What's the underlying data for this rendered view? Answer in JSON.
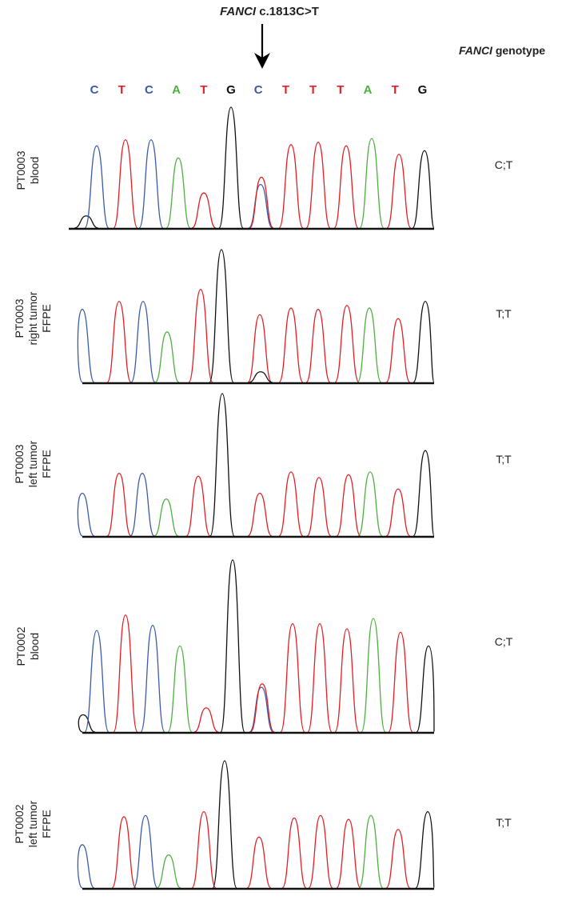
{
  "mutation": {
    "gene": "FANCI",
    "variant": "c.1813C>T"
  },
  "genotype_header": {
    "gene": "FANCI",
    "label": "genotype"
  },
  "base_colors": {
    "A": "#4daf3f",
    "C": "#3a5ba9",
    "G": "#111111",
    "T": "#e31e24"
  },
  "reference_sequence": [
    "C",
    "T",
    "C",
    "A",
    "T",
    "G",
    "C",
    "T",
    "T",
    "T",
    "A",
    "T",
    "G"
  ],
  "samples": [
    {
      "label_lines": [
        "PT0003",
        "blood"
      ],
      "genotype": "C;T"
    },
    {
      "label_lines": [
        "PT0003",
        "right tumor",
        "FFPE"
      ],
      "genotype": "T;T"
    },
    {
      "label_lines": [
        "PT0003",
        "left tumor",
        "FFPE"
      ],
      "genotype": "T;T"
    },
    {
      "label_lines": [
        "PT0002",
        "blood"
      ],
      "genotype": "C;T"
    },
    {
      "label_lines": [
        "PT0002",
        "left tumor",
        "FFPE"
      ],
      "genotype": "T;T"
    }
  ],
  "chart_data": {
    "type": "line",
    "title": "",
    "xlabel": "",
    "ylabel": "",
    "series_names": [
      "A",
      "C",
      "G",
      "T"
    ],
    "traces": [
      {
        "sample": "PT0003 blood",
        "genotype": "C;T",
        "peaks": [
          {
            "base": "G",
            "value": 0.1
          },
          {
            "base": "C",
            "value": 0.68
          },
          {
            "base": "T",
            "value": 0.73
          },
          {
            "base": "C",
            "value": 0.73
          },
          {
            "base": "A",
            "value": 0.58
          },
          {
            "base": "T",
            "value": 0.29
          },
          {
            "base": "G",
            "value": 1.0
          },
          {
            "base": "C",
            "value": 0.36
          },
          {
            "base": "T",
            "value": 0.42
          },
          {
            "base": "T",
            "value": 0.69
          },
          {
            "base": "T",
            "value": 0.71
          },
          {
            "base": "T",
            "value": 0.68
          },
          {
            "base": "A",
            "value": 0.74
          },
          {
            "base": "T",
            "value": 0.61
          },
          {
            "base": "G",
            "value": 0.64
          }
        ]
      },
      {
        "sample": "PT0003 right tumor FFPE",
        "genotype": "T;T",
        "peaks": [
          {
            "base": "C",
            "value": 0.55
          },
          {
            "base": "T",
            "value": 0.61
          },
          {
            "base": "C",
            "value": 0.61
          },
          {
            "base": "A",
            "value": 0.38
          },
          {
            "base": "T",
            "value": 0.7
          },
          {
            "base": "G",
            "value": 1.0
          },
          {
            "base": "T",
            "value": 0.51
          },
          {
            "base": "G",
            "value": 0.08
          },
          {
            "base": "T",
            "value": 0.56
          },
          {
            "base": "T",
            "value": 0.55
          },
          {
            "base": "T",
            "value": 0.58
          },
          {
            "base": "A",
            "value": 0.56
          },
          {
            "base": "T",
            "value": 0.48
          },
          {
            "base": "G",
            "value": 0.61
          }
        ]
      },
      {
        "sample": "PT0003 left tumor FFPE",
        "genotype": "T;T",
        "peaks": [
          {
            "base": "C",
            "value": 0.3
          },
          {
            "base": "T",
            "value": 0.44
          },
          {
            "base": "C",
            "value": 0.44
          },
          {
            "base": "A",
            "value": 0.26
          },
          {
            "base": "T",
            "value": 0.42
          },
          {
            "base": "G",
            "value": 1.0
          },
          {
            "base": "T",
            "value": 0.3
          },
          {
            "base": "T",
            "value": 0.45
          },
          {
            "base": "T",
            "value": 0.41
          },
          {
            "base": "T",
            "value": 0.43
          },
          {
            "base": "A",
            "value": 0.45
          },
          {
            "base": "T",
            "value": 0.33
          },
          {
            "base": "G",
            "value": 0.6
          }
        ]
      },
      {
        "sample": "PT0002 blood",
        "genotype": "C;T",
        "peaks": [
          {
            "base": "G",
            "value": 0.1
          },
          {
            "base": "C",
            "value": 0.59
          },
          {
            "base": "T",
            "value": 0.68
          },
          {
            "base": "C",
            "value": 0.62
          },
          {
            "base": "A",
            "value": 0.5
          },
          {
            "base": "T",
            "value": 0.14
          },
          {
            "base": "G",
            "value": 1.0
          },
          {
            "base": "C",
            "value": 0.26
          },
          {
            "base": "T",
            "value": 0.28
          },
          {
            "base": "T",
            "value": 0.63
          },
          {
            "base": "T",
            "value": 0.63
          },
          {
            "base": "T",
            "value": 0.6
          },
          {
            "base": "A",
            "value": 0.66
          },
          {
            "base": "T",
            "value": 0.58
          },
          {
            "base": "G",
            "value": 0.5
          }
        ]
      },
      {
        "sample": "PT0002 left tumor FFPE",
        "genotype": "T;T",
        "peaks": [
          {
            "base": "C",
            "value": 0.34
          },
          {
            "base": "T",
            "value": 0.56
          },
          {
            "base": "C",
            "value": 0.57
          },
          {
            "base": "A",
            "value": 0.26
          },
          {
            "base": "T",
            "value": 0.6
          },
          {
            "base": "G",
            "value": 1.0
          },
          {
            "base": "T",
            "value": 0.4
          },
          {
            "base": "T",
            "value": 0.55
          },
          {
            "base": "T",
            "value": 0.57
          },
          {
            "base": "T",
            "value": 0.54
          },
          {
            "base": "A",
            "value": 0.57
          },
          {
            "base": "T",
            "value": 0.46
          },
          {
            "base": "G",
            "value": 0.6
          }
        ]
      }
    ]
  }
}
